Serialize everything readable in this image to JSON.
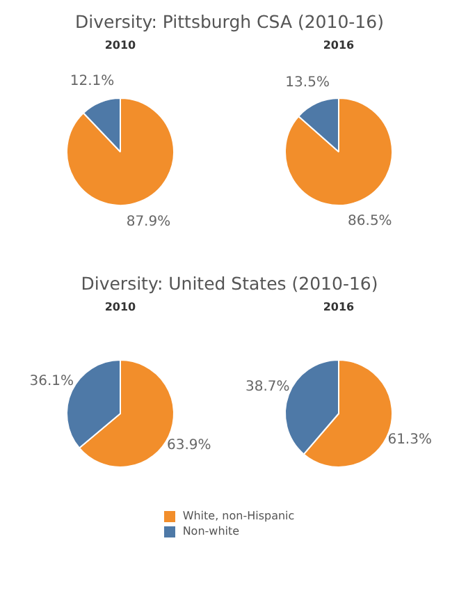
{
  "chart_data": [
    {
      "type": "pie",
      "title": "Diversity: Pittsburgh CSA (2010-16)",
      "subtitle": "2010",
      "categories": [
        null,
        null
      ],
      "values": [
        87.9,
        12.1
      ],
      "colors": [
        "#f28e2b",
        "#4e79a7"
      ],
      "value_labels": [
        "87.9%",
        "12.1%"
      ]
    },
    {
      "type": "pie",
      "subtitle": "2016",
      "categories": [
        null,
        null
      ],
      "values": [
        86.5,
        13.5
      ],
      "colors": [
        "#f28e2b",
        "#4e79a7"
      ],
      "value_labels": [
        "86.5%",
        "13.5%"
      ]
    },
    {
      "type": "pie",
      "title": "Diversity: United States (2010-16)",
      "subtitle": "2010",
      "categories": [
        null,
        null
      ],
      "values": [
        63.9,
        36.1
      ],
      "colors": [
        "#f28e2b",
        "#4e79a7"
      ],
      "value_labels": [
        "63.9%",
        "36.1%"
      ]
    },
    {
      "type": "pie",
      "subtitle": "2016",
      "categories": [
        "White, non-Hispanic",
        "Non-white"
      ],
      "values": [
        61.3,
        38.7
      ],
      "colors": [
        "#f28e2b",
        "#4e79a7"
      ],
      "value_labels": [
        "61.3%",
        "38.7%"
      ],
      "legend": "bottom"
    }
  ]
}
